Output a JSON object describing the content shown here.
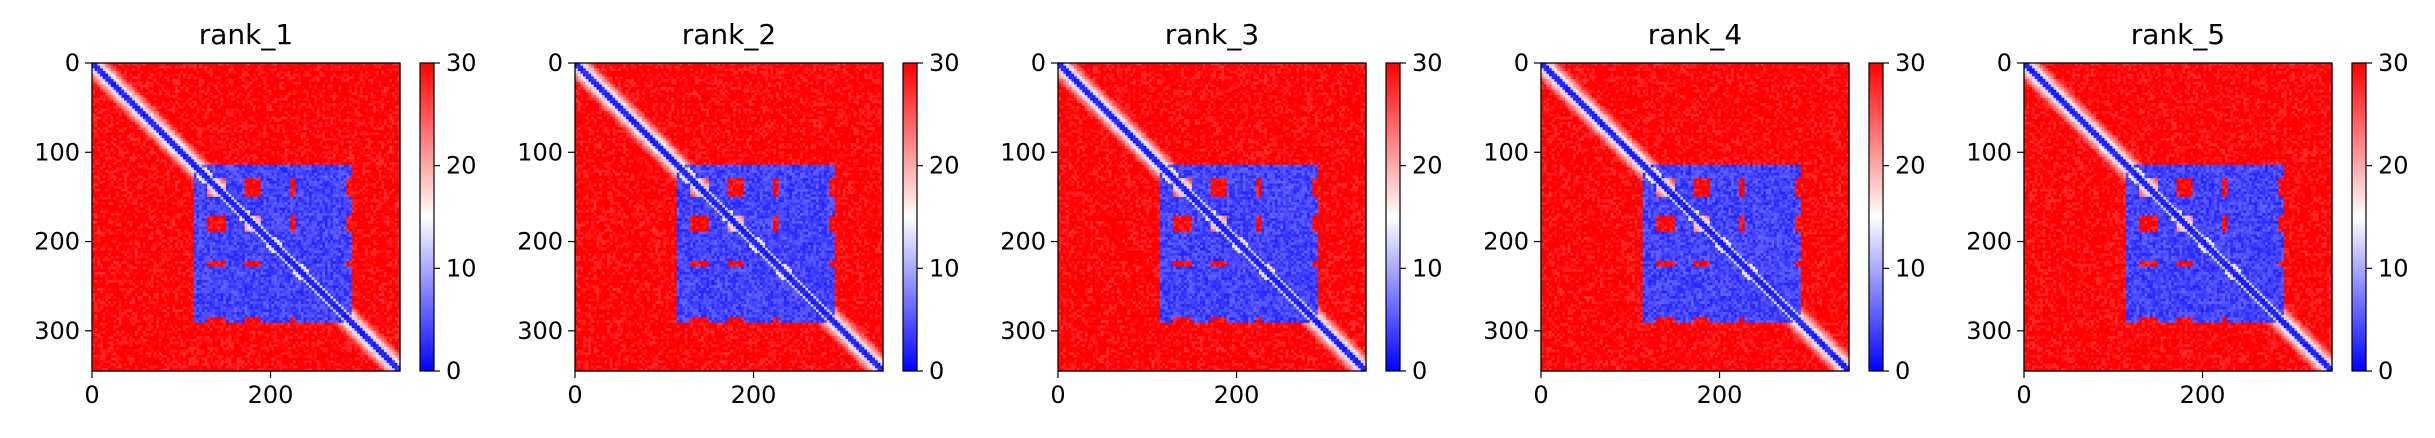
{
  "figure": {
    "background": "#ffffff"
  },
  "chart_data": [
    {
      "type": "heatmap",
      "title": "rank_1",
      "xticks": [
        0,
        200
      ],
      "yticks": [
        0,
        100,
        200,
        300
      ],
      "xlim": [
        0,
        345
      ],
      "ylim": [
        345,
        0
      ],
      "colorbar": {
        "range": [
          0,
          30
        ],
        "ticks": [
          0,
          10,
          20,
          30
        ],
        "colormap": "bwr",
        "low_color": "#0000ff",
        "mid_color": "#ffffff",
        "high_color": "#ff0000"
      },
      "structure": {
        "length": 345,
        "blocks": [
          [
            115,
            130
          ],
          [
            150,
            172
          ],
          [
            188,
            222
          ],
          [
            228,
            285
          ]
        ],
        "block_x_range": [
          115,
          290
        ]
      }
    },
    {
      "type": "heatmap",
      "title": "rank_2",
      "xticks": [
        0,
        200
      ],
      "yticks": [
        0,
        100,
        200,
        300
      ],
      "xlim": [
        0,
        345
      ],
      "ylim": [
        345,
        0
      ],
      "colorbar": {
        "range": [
          0,
          30
        ],
        "ticks": [
          0,
          10,
          20,
          30
        ],
        "colormap": "bwr",
        "low_color": "#0000ff",
        "mid_color": "#ffffff",
        "high_color": "#ff0000"
      },
      "structure": {
        "length": 345,
        "blocks": [
          [
            115,
            130
          ],
          [
            150,
            172
          ],
          [
            188,
            222
          ],
          [
            228,
            285
          ]
        ],
        "block_x_range": [
          115,
          290
        ]
      }
    },
    {
      "type": "heatmap",
      "title": "rank_3",
      "xticks": [
        0,
        200
      ],
      "yticks": [
        0,
        100,
        200,
        300
      ],
      "xlim": [
        0,
        345
      ],
      "ylim": [
        345,
        0
      ],
      "colorbar": {
        "range": [
          0,
          30
        ],
        "ticks": [
          0,
          10,
          20,
          30
        ],
        "colormap": "bwr",
        "low_color": "#0000ff",
        "mid_color": "#ffffff",
        "high_color": "#ff0000"
      },
      "structure": {
        "length": 345,
        "blocks": [
          [
            115,
            130
          ],
          [
            150,
            172
          ],
          [
            188,
            222
          ],
          [
            228,
            285
          ]
        ],
        "block_x_range": [
          115,
          290
        ]
      }
    },
    {
      "type": "heatmap",
      "title": "rank_4",
      "xticks": [
        0,
        200
      ],
      "yticks": [
        0,
        100,
        200,
        300
      ],
      "xlim": [
        0,
        345
      ],
      "ylim": [
        345,
        0
      ],
      "colorbar": {
        "range": [
          0,
          30
        ],
        "ticks": [
          0,
          10,
          20,
          30
        ],
        "colormap": "bwr",
        "low_color": "#0000ff",
        "mid_color": "#ffffff",
        "high_color": "#ff0000"
      },
      "structure": {
        "length": 345,
        "blocks": [
          [
            115,
            130
          ],
          [
            150,
            172
          ],
          [
            188,
            222
          ],
          [
            228,
            285
          ]
        ],
        "block_x_range": [
          115,
          290
        ]
      }
    },
    {
      "type": "heatmap",
      "title": "rank_5",
      "xticks": [
        0,
        200
      ],
      "yticks": [
        0,
        100,
        200,
        300
      ],
      "xlim": [
        0,
        345
      ],
      "ylim": [
        345,
        0
      ],
      "colorbar": {
        "range": [
          0,
          30
        ],
        "ticks": [
          0,
          10,
          20,
          30
        ],
        "colormap": "bwr",
        "low_color": "#0000ff",
        "mid_color": "#ffffff",
        "high_color": "#ff0000"
      },
      "structure": {
        "length": 345,
        "blocks": [
          [
            115,
            130
          ],
          [
            150,
            172
          ],
          [
            188,
            222
          ],
          [
            228,
            285
          ]
        ],
        "block_x_range": [
          115,
          290
        ]
      }
    }
  ]
}
